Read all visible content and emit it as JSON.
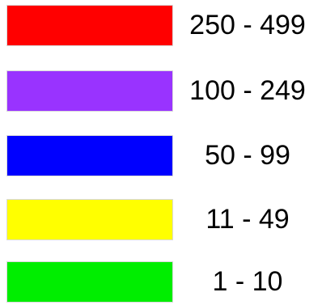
{
  "legend": {
    "items": [
      {
        "label": "250 - 499",
        "color": "#ff0000"
      },
      {
        "label": "100 - 249",
        "color": "#9933ff"
      },
      {
        "label": "50 - 99",
        "color": "#0000ff"
      },
      {
        "label": "11 - 49",
        "color": "#ffff00"
      },
      {
        "label": "1 - 10",
        "color": "#00ee00"
      }
    ]
  }
}
